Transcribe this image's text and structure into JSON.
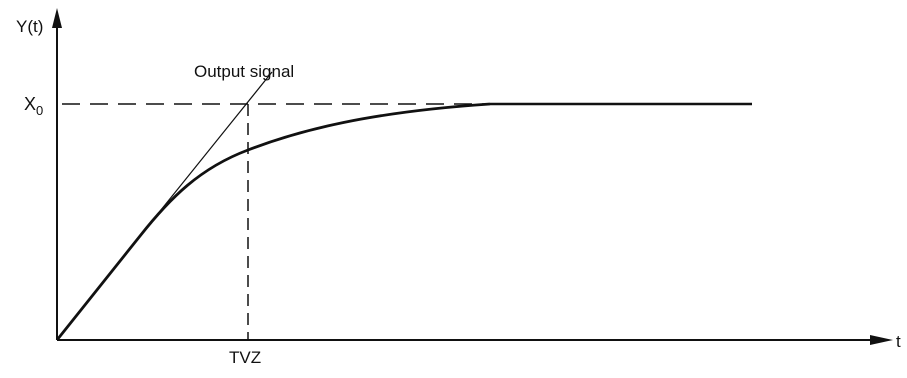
{
  "diagram": {
    "y_axis_label": "Y(t)",
    "x_axis_label": "t",
    "level_label_base": "X",
    "level_label_sub": "0",
    "curve_label": "Output signal",
    "time_marker_label": "TVZ"
  }
}
